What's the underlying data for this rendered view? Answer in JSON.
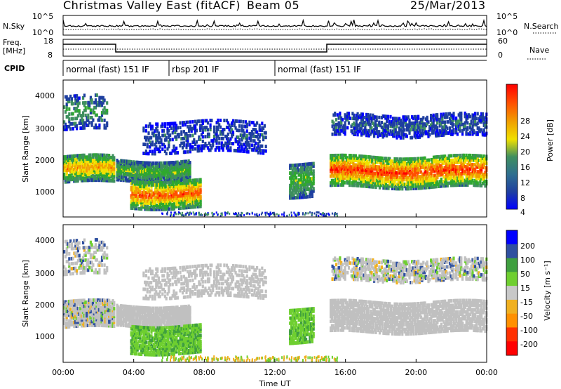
{
  "header": {
    "title": "Christmas Valley East (fitACF)",
    "beam": "Beam 05",
    "date": "25/Mar/2013"
  },
  "noise_panel": {
    "left_label": "N.Sky",
    "right_label": "N.Search",
    "left_ticks": [
      "10^5",
      "10^0"
    ],
    "right_ticks": [
      "10^5",
      "10^0"
    ]
  },
  "freq_panel": {
    "left_label_1": "Freq.",
    "left_label_2": "[MHz]",
    "left_ticks": [
      "18",
      "8"
    ],
    "right_label": "Nave",
    "right_ticks": [
      "60",
      "0"
    ]
  },
  "cpid_panel": {
    "label": "CPID",
    "segments": [
      {
        "start": 0.0,
        "end": 6.0,
        "text": "normal (fast) 151 IF"
      },
      {
        "start": 6.0,
        "end": 12.0,
        "text": "rbsp 201 IF"
      },
      {
        "start": 12.0,
        "end": 24.0,
        "text": "normal (fast) 151 IF"
      }
    ]
  },
  "power_panel": {
    "ylabel": "Slant Range [km]",
    "yticks": [
      "4000",
      "3000",
      "2000",
      "1000"
    ],
    "colorbar_label": "Power [dB]",
    "colorbar_ticks": [
      "28",
      "24",
      "20",
      "16",
      "12",
      "8",
      "4"
    ]
  },
  "velocity_panel": {
    "ylabel": "Slant Range [km]",
    "yticks": [
      "4000",
      "3000",
      "2000",
      "1000"
    ],
    "colorbar_label": "Velocity [m s⁻¹]",
    "colorbar_ticks": [
      "200",
      "100",
      "50",
      "15",
      "-15",
      "-50",
      "-100",
      "-200"
    ]
  },
  "x_axis": {
    "label": "Time UT",
    "ticks": [
      "00:00",
      "04:00",
      "08:00",
      "12:00",
      "16:00",
      "20:00",
      "00:00"
    ]
  },
  "colors": {
    "power_scale": [
      "#0000ff",
      "#1f3fa0",
      "#3f8f5f",
      "#2fa82f",
      "#f0e000",
      "#f0a000",
      "#ff5000",
      "#ff0000"
    ],
    "velocity_scale": [
      "#ff0000",
      "#ff3000",
      "#ff9000",
      "#f0b020",
      "#c8c8c8",
      "#6fcf30",
      "#3f9f3f",
      "#2f50a0",
      "#0000ff"
    ],
    "ground_scatter": "#c0c0c0"
  },
  "chart_data": {
    "type": "heatmap",
    "x": {
      "label": "Time UT",
      "range_hours": [
        0,
        24
      ]
    },
    "y": {
      "label": "Slant Range [km]",
      "range": [
        200,
        4500
      ]
    },
    "power_db_range": [
      0,
      30
    ],
    "velocity_ms_range": [
      -250,
      250
    ],
    "features": [
      {
        "name": "",
        "t": [
          0.0,
          2.9
        ],
        "range_km": [
          1350,
          2200
        ],
        "power_db": 22
      },
      {
        "name": "",
        "t": [
          3.0,
          7.2
        ],
        "range_km": [
          1400,
          2050
        ],
        "power_db": 14
      },
      {
        "name": "",
        "t": [
          3.8,
          7.8
        ],
        "range_km": [
          550,
          1450
        ],
        "power_db": 26
      },
      {
        "name": "",
        "t": [
          12.8,
          14.2
        ],
        "range_km": [
          900,
          2000
        ],
        "power_db": 14
      },
      {
        "name": "",
        "t": [
          15.1,
          24.0
        ],
        "range_km": [
          1200,
          2200
        ],
        "power_db": 28
      }
    ]
  }
}
